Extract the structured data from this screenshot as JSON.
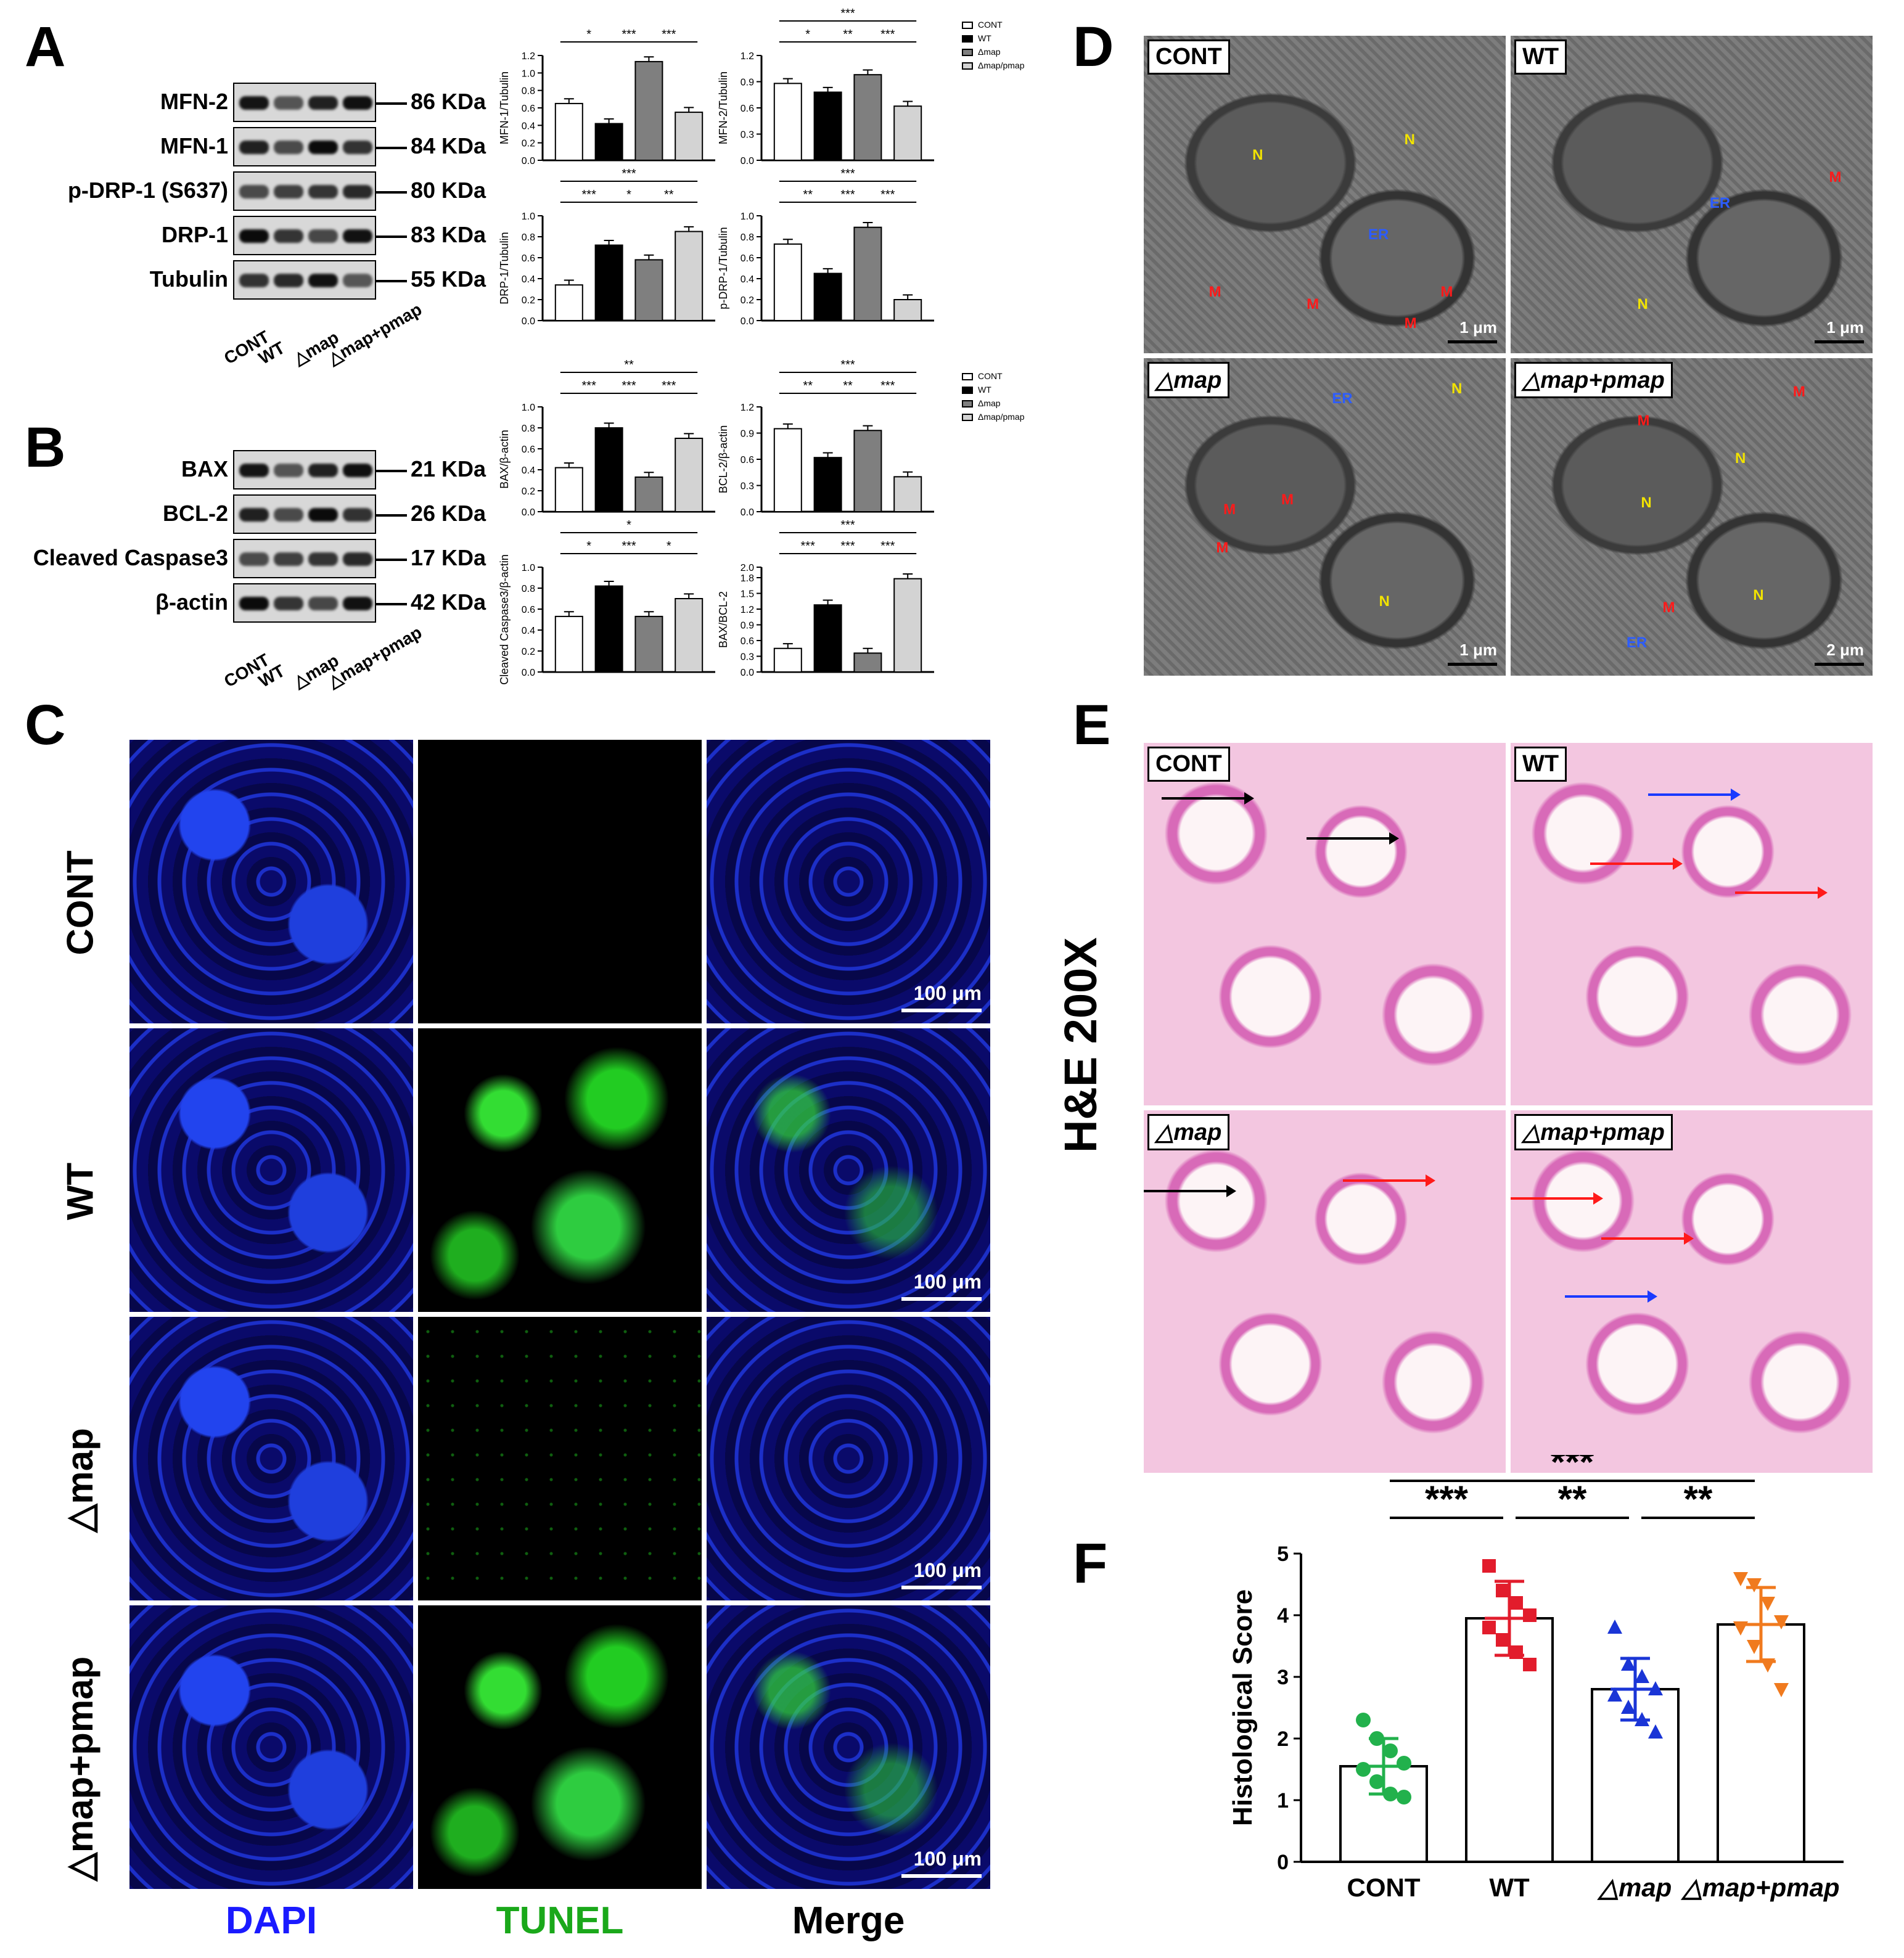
{
  "panel_letters": [
    "A",
    "B",
    "C",
    "D",
    "E",
    "F"
  ],
  "panelA": {
    "blot_labels": [
      "MFN-2",
      "MFN-1",
      "p-DRP-1 (S637)",
      "DRP-1",
      "Tubulin"
    ],
    "kda_labels": [
      "86 KDa",
      "84 KDa",
      "80 KDa",
      "83 KDa",
      "55 KDa"
    ],
    "lane_labels": [
      "CONT",
      "WT",
      "△map",
      "△map+pmap"
    ]
  },
  "panelB": {
    "blot_labels": [
      "BAX",
      "BCL-2",
      "Cleaved Caspase3",
      "β-actin"
    ],
    "kda_labels": [
      "21 KDa",
      "26 KDa",
      "17 KDa",
      "42 KDa"
    ],
    "lane_labels": [
      "CONT",
      "WT",
      "△map",
      "△map+pmap"
    ]
  },
  "legend": [
    "CONT",
    "WT",
    "Δmap",
    "Δmap/pmap"
  ],
  "chart_data": [
    {
      "type": "bar",
      "ylabel": "MFN-1/Tubulin",
      "categories": [
        "CONT",
        "WT",
        "Δmap",
        "Δmap/pmap"
      ],
      "values": [
        0.65,
        0.42,
        1.13,
        0.55
      ],
      "ylim": [
        0,
        1.2
      ],
      "yticks": [
        "0.0",
        "0.2",
        "0.4",
        "0.6",
        "0.8",
        "1.0",
        "1.2"
      ],
      "sig_top": [],
      "sig_bottom": [
        "*",
        "***",
        "***"
      ]
    },
    {
      "type": "bar",
      "ylabel": "MFN-2/Tubulin",
      "categories": [
        "CONT",
        "WT",
        "Δmap",
        "Δmap/pmap"
      ],
      "values": [
        0.88,
        0.78,
        0.98,
        0.62
      ],
      "ylim": [
        0,
        1.2
      ],
      "yticks": [
        "0.0",
        "0.3",
        "0.6",
        "0.9",
        "1.2"
      ],
      "sig_top": [
        "***"
      ],
      "sig_bottom": [
        "*",
        "**",
        "***"
      ]
    },
    {
      "type": "bar",
      "ylabel": "DRP-1/Tubulin",
      "categories": [
        "CONT",
        "WT",
        "Δmap",
        "Δmap/pmap"
      ],
      "values": [
        0.34,
        0.72,
        0.58,
        0.85
      ],
      "ylim": [
        0,
        1.0
      ],
      "yticks": [
        "0.0",
        "0.2",
        "0.4",
        "0.6",
        "0.8",
        "1.0"
      ],
      "sig_top": [
        "***"
      ],
      "sig_bottom": [
        "***",
        "*",
        "**"
      ]
    },
    {
      "type": "bar",
      "ylabel": "p-DRP-1/Tubulin",
      "categories": [
        "CONT",
        "WT",
        "Δmap",
        "Δmap/pmap"
      ],
      "values": [
        0.73,
        0.45,
        0.89,
        0.2
      ],
      "ylim": [
        0,
        1.0
      ],
      "yticks": [
        "0.0",
        "0.2",
        "0.4",
        "0.6",
        "0.8",
        "1.0"
      ],
      "sig_top": [
        "***"
      ],
      "sig_bottom": [
        "**",
        "***",
        "***"
      ]
    },
    {
      "type": "bar",
      "ylabel": "BAX/β-actin",
      "categories": [
        "CONT",
        "WT",
        "Δmap",
        "Δmap/pmap"
      ],
      "values": [
        0.42,
        0.8,
        0.33,
        0.7
      ],
      "ylim": [
        0,
        1.0
      ],
      "yticks": [
        "0.0",
        "0.2",
        "0.4",
        "0.6",
        "0.8",
        "1.0"
      ],
      "sig_top": [
        "**"
      ],
      "sig_bottom": [
        "***",
        "***",
        "***"
      ]
    },
    {
      "type": "bar",
      "ylabel": "BCL-2/β-actin",
      "categories": [
        "CONT",
        "WT",
        "Δmap",
        "Δmap/pmap"
      ],
      "values": [
        0.95,
        0.62,
        0.93,
        0.4
      ],
      "ylim": [
        0,
        1.2
      ],
      "yticks": [
        "0.0",
        "0.3",
        "0.6",
        "0.9",
        "1.2"
      ],
      "sig_top": [
        "***"
      ],
      "sig_bottom": [
        "**",
        "**",
        "***"
      ]
    },
    {
      "type": "bar",
      "ylabel": "Cleaved Caspase3/β-actin",
      "categories": [
        "CONT",
        "WT",
        "Δmap",
        "Δmap/pmap"
      ],
      "values": [
        0.53,
        0.82,
        0.53,
        0.7
      ],
      "ylim": [
        0,
        1.0
      ],
      "yticks": [
        "0.0",
        "0.2",
        "0.4",
        "0.6",
        "0.8",
        "1.0"
      ],
      "sig_top": [
        "*"
      ],
      "sig_bottom": [
        "*",
        "***",
        "*"
      ]
    },
    {
      "type": "bar",
      "ylabel": "BAX/BCL-2",
      "categories": [
        "CONT",
        "WT",
        "Δmap",
        "Δmap/pmap"
      ],
      "values": [
        0.45,
        1.28,
        0.36,
        1.78
      ],
      "ylim": [
        0,
        2.0
      ],
      "yticks": [
        "0.0",
        "0.3",
        "0.6",
        "0.9",
        "1.2",
        "1.5",
        "1.8",
        "2.0"
      ],
      "sig_top": [
        "***"
      ],
      "sig_bottom": [
        "***",
        "***",
        "***"
      ]
    },
    {
      "type": "scatter",
      "ylabel": "Histological Score",
      "categories": [
        "CONT",
        "WT",
        "△map",
        "△map+pmap"
      ],
      "means": [
        1.55,
        3.95,
        2.8,
        3.85
      ],
      "sd": [
        0.45,
        0.6,
        0.5,
        0.6
      ],
      "points": [
        [
          2.3,
          2.0,
          1.8,
          1.6,
          1.5,
          1.3,
          1.1,
          1.05
        ],
        [
          4.8,
          4.4,
          4.2,
          4.0,
          3.8,
          3.6,
          3.4,
          3.2
        ],
        [
          3.8,
          3.2,
          3.0,
          2.8,
          2.7,
          2.5,
          2.3,
          2.1
        ],
        [
          4.6,
          4.5,
          4.2,
          3.9,
          3.8,
          3.5,
          3.2,
          2.8
        ]
      ],
      "ylim": [
        0,
        5
      ],
      "yticks": [
        "0",
        "1",
        "2",
        "3",
        "4",
        "5"
      ],
      "sig_top": [
        "***"
      ],
      "sig_bottom": [
        "***",
        "**",
        "**"
      ],
      "colors": [
        "#22b14c",
        "#e21c2c",
        "#1a35d6",
        "#f07a1e"
      ]
    }
  ],
  "panelC": {
    "row_labels": [
      "CONT",
      "WT",
      "△map",
      "△map+pmap"
    ],
    "col_labels": [
      "DAPI",
      "TUNEL",
      "Merge"
    ],
    "scale": "100 μm",
    "col_colors": [
      "#1a1aff",
      "#1aa81a",
      "#000000"
    ]
  },
  "panelD": {
    "tile_labels": [
      "CONT",
      "WT",
      "△map",
      "△map+pmap"
    ],
    "scales": [
      "1 μm",
      "1 μm",
      "1 μm",
      "2 μm"
    ],
    "annotations": {
      "nucleus": "N",
      "er": "ER",
      "mito": "M"
    }
  },
  "panelE": {
    "side_label": "H&E 200X",
    "tile_labels": [
      "CONT",
      "WT",
      "△map",
      "△map+pmap"
    ]
  }
}
